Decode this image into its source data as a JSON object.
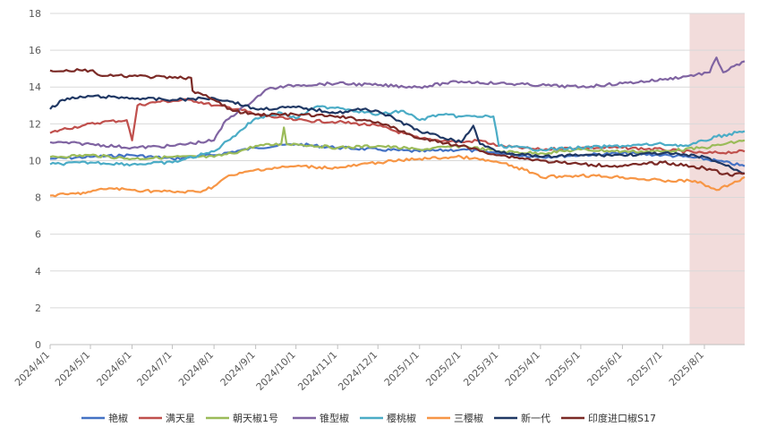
{
  "chart_data": {
    "type": "line",
    "title": "",
    "xlabel": "",
    "ylabel": "",
    "ylim": [
      0,
      18
    ],
    "yticks": [
      0,
      2,
      4,
      6,
      8,
      10,
      12,
      14,
      16,
      18
    ],
    "x_range": [
      "2024/4/1",
      "2025/8/31"
    ],
    "xticks": [
      "2024/4/1",
      "2024/5/1",
      "2024/6/1",
      "2024/7/1",
      "2024/8/1",
      "2024/9/1",
      "2024/10/1",
      "2024/11/1",
      "2024/12/1",
      "2025/1/1",
      "2025/2/1",
      "2025/3/1",
      "2025/4/1",
      "2025/5/1",
      "2025/6/1",
      "2025/7/1",
      "2025/8/1"
    ],
    "highlight_range": [
      "2025/7/21",
      "2025/8/31"
    ],
    "highlight_color": "#f2dcdb",
    "grid": "horizontal",
    "legend_position": "bottom",
    "series": [
      {
        "name": "艳椒",
        "color": "#4472c4",
        "points": [
          [
            "2024/4/1",
            10.1
          ],
          [
            "2024/5/1",
            10.2
          ],
          [
            "2024/6/1",
            10.3
          ],
          [
            "2024/7/1",
            10.1
          ],
          [
            "2024/8/1",
            10.3
          ],
          [
            "2024/9/1",
            10.7
          ],
          [
            "2024/10/1",
            10.9
          ],
          [
            "2024/11/1",
            10.7
          ],
          [
            "2024/12/1",
            10.6
          ],
          [
            "2025/1/1",
            10.5
          ],
          [
            "2025/2/1",
            10.6
          ],
          [
            "2025/3/1",
            10.4
          ],
          [
            "2025/4/1",
            10.2
          ],
          [
            "2025/5/1",
            10.3
          ],
          [
            "2025/6/1",
            10.4
          ],
          [
            "2025/7/1",
            10.3
          ],
          [
            "2025/7/20",
            10.2
          ],
          [
            "2025/8/10",
            10.0
          ],
          [
            "2025/8/31",
            9.7
          ]
        ]
      },
      {
        "name": "满天星",
        "color": "#c0504d",
        "points": [
          [
            "2024/4/1",
            11.5
          ],
          [
            "2024/4/10",
            11.7
          ],
          [
            "2024/4/25",
            11.9
          ],
          [
            "2024/5/10",
            12.1
          ],
          [
            "2024/5/28",
            12.2
          ],
          [
            "2024/6/1",
            11.1
          ],
          [
            "2024/6/5",
            13.0
          ],
          [
            "2024/6/20",
            13.2
          ],
          [
            "2024/7/15",
            13.3
          ],
          [
            "2024/8/1",
            13.0
          ],
          [
            "2024/8/20",
            12.8
          ],
          [
            "2024/9/1",
            12.5
          ],
          [
            "2024/10/1",
            12.2
          ],
          [
            "2024/11/1",
            12.1
          ],
          [
            "2024/12/1",
            11.9
          ],
          [
            "2025/1/1",
            11.2
          ],
          [
            "2025/2/1",
            11.0
          ],
          [
            "2025/2/15",
            11.1
          ],
          [
            "2025/3/1",
            10.8
          ],
          [
            "2025/4/1",
            10.6
          ],
          [
            "2025/5/1",
            10.7
          ],
          [
            "2025/6/1",
            10.7
          ],
          [
            "2025/7/1",
            10.6
          ],
          [
            "2025/8/1",
            10.4
          ],
          [
            "2025/8/31",
            10.5
          ]
        ]
      },
      {
        "name": "朝天椒1号",
        "color": "#9bbb59",
        "points": [
          [
            "2024/4/1",
            10.2
          ],
          [
            "2024/5/1",
            10.3
          ],
          [
            "2024/6/1",
            10.1
          ],
          [
            "2024/7/1",
            10.2
          ],
          [
            "2024/8/1",
            10.2
          ],
          [
            "2024/8/20",
            10.5
          ],
          [
            "2024/9/1",
            10.8
          ],
          [
            "2024/9/20",
            10.9
          ],
          [
            "2024/9/22",
            11.8
          ],
          [
            "2024/9/24",
            10.9
          ],
          [
            "2024/10/1",
            10.9
          ],
          [
            "2024/11/1",
            10.7
          ],
          [
            "2024/12/1",
            10.8
          ],
          [
            "2025/1/1",
            10.6
          ],
          [
            "2025/2/1",
            10.8
          ],
          [
            "2025/3/1",
            10.5
          ],
          [
            "2025/4/1",
            10.4
          ],
          [
            "2025/5/1",
            10.6
          ],
          [
            "2025/6/1",
            10.5
          ],
          [
            "2025/7/1",
            10.5
          ],
          [
            "2025/8/1",
            10.7
          ],
          [
            "2025/8/31",
            11.1
          ]
        ]
      },
      {
        "name": "锥型椒",
        "color": "#8064a2",
        "points": [
          [
            "2024/4/1",
            11.0
          ],
          [
            "2024/5/1",
            10.9
          ],
          [
            "2024/6/1",
            10.7
          ],
          [
            "2024/7/1",
            10.8
          ],
          [
            "2024/8/1",
            11.1
          ],
          [
            "2024/8/10",
            12.2
          ],
          [
            "2024/8/25",
            13.0
          ],
          [
            "2024/9/1",
            13.4
          ],
          [
            "2024/9/10",
            13.9
          ],
          [
            "2024/10/1",
            14.1
          ],
          [
            "2024/11/1",
            14.2
          ],
          [
            "2024/12/1",
            14.1
          ],
          [
            "2025/1/1",
            14.0
          ],
          [
            "2025/1/20",
            14.2
          ],
          [
            "2025/2/1",
            14.3
          ],
          [
            "2025/3/1",
            14.2
          ],
          [
            "2025/4/1",
            14.1
          ],
          [
            "2025/5/1",
            14.0
          ],
          [
            "2025/6/1",
            14.2
          ],
          [
            "2025/7/1",
            14.4
          ],
          [
            "2025/7/20",
            14.6
          ],
          [
            "2025/8/5",
            14.8
          ],
          [
            "2025/8/10",
            15.6
          ],
          [
            "2025/8/15",
            14.8
          ],
          [
            "2025/8/31",
            15.4
          ]
        ]
      },
      {
        "name": "樱桃椒",
        "color": "#4bacc6",
        "points": [
          [
            "2024/4/1",
            9.8
          ],
          [
            "2024/5/1",
            9.9
          ],
          [
            "2024/6/1",
            9.8
          ],
          [
            "2024/7/1",
            9.9
          ],
          [
            "2024/8/1",
            10.5
          ],
          [
            "2024/8/15",
            11.3
          ],
          [
            "2024/9/1",
            12.3
          ],
          [
            "2024/9/20",
            12.6
          ],
          [
            "2024/10/1",
            12.3
          ],
          [
            "2024/10/15",
            12.9
          ],
          [
            "2024/11/1",
            12.9
          ],
          [
            "2024/12/1",
            12.5
          ],
          [
            "2024/12/20",
            12.7
          ],
          [
            "2025/1/1",
            12.2
          ],
          [
            "2025/1/15",
            12.5
          ],
          [
            "2025/2/1",
            12.4
          ],
          [
            "2025/2/25",
            12.4
          ],
          [
            "2025/3/1",
            10.8
          ],
          [
            "2025/4/1",
            10.6
          ],
          [
            "2025/5/1",
            10.7
          ],
          [
            "2025/6/1",
            10.8
          ],
          [
            "2025/7/1",
            10.9
          ],
          [
            "2025/7/20",
            10.8
          ],
          [
            "2025/8/10",
            11.3
          ],
          [
            "2025/8/31",
            11.6
          ]
        ]
      },
      {
        "name": "三樱椒",
        "color": "#f79646",
        "points": [
          [
            "2024/4/1",
            8.1
          ],
          [
            "2024/4/20",
            8.2
          ],
          [
            "2024/5/1",
            8.3
          ],
          [
            "2024/5/15",
            8.5
          ],
          [
            "2024/6/1",
            8.4
          ],
          [
            "2024/7/1",
            8.3
          ],
          [
            "2024/7/20",
            8.3
          ],
          [
            "2024/8/1",
            8.6
          ],
          [
            "2024/8/10",
            9.1
          ],
          [
            "2024/9/1",
            9.5
          ],
          [
            "2024/10/1",
            9.7
          ],
          [
            "2024/11/1",
            9.6
          ],
          [
            "2024/12/1",
            9.9
          ],
          [
            "2025/1/1",
            10.1
          ],
          [
            "2025/2/1",
            10.2
          ],
          [
            "2025/3/1",
            9.9
          ],
          [
            "2025/3/20",
            9.5
          ],
          [
            "2025/4/1",
            9.1
          ],
          [
            "2025/5/1",
            9.2
          ],
          [
            "2025/6/1",
            9.1
          ],
          [
            "2025/7/1",
            8.9
          ],
          [
            "2025/7/25",
            8.9
          ],
          [
            "2025/8/10",
            8.4
          ],
          [
            "2025/8/20",
            8.7
          ],
          [
            "2025/8/31",
            9.1
          ]
        ]
      },
      {
        "name": "新一代",
        "color": "#203864",
        "points": [
          [
            "2024/4/1",
            12.8
          ],
          [
            "2024/4/10",
            13.3
          ],
          [
            "2024/5/1",
            13.5
          ],
          [
            "2024/6/1",
            13.4
          ],
          [
            "2024/7/1",
            13.3
          ],
          [
            "2024/8/1",
            13.4
          ],
          [
            "2024/8/15",
            13.2
          ],
          [
            "2024/9/1",
            12.8
          ],
          [
            "2024/10/1",
            12.9
          ],
          [
            "2024/11/1",
            12.6
          ],
          [
            "2024/11/20",
            12.8
          ],
          [
            "2024/12/1",
            12.7
          ],
          [
            "2025/1/1",
            11.6
          ],
          [
            "2025/2/1",
            11.0
          ],
          [
            "2025/2/10",
            11.9
          ],
          [
            "2025/2/15",
            10.9
          ],
          [
            "2025/3/1",
            10.5
          ],
          [
            "2025/4/1",
            10.2
          ],
          [
            "2025/5/1",
            10.3
          ],
          [
            "2025/6/1",
            10.3
          ],
          [
            "2025/7/1",
            10.4
          ],
          [
            "2025/8/1",
            10.2
          ],
          [
            "2025/8/15",
            9.8
          ],
          [
            "2025/8/31",
            9.3
          ]
        ]
      },
      {
        "name": "印度进口椒S17",
        "color": "#7b2a26",
        "points": [
          [
            "2024/4/1",
            14.9
          ],
          [
            "2024/5/1",
            14.9
          ],
          [
            "2024/5/10",
            14.6
          ],
          [
            "2024/6/1",
            14.6
          ],
          [
            "2024/7/1",
            14.5
          ],
          [
            "2024/7/15",
            14.5
          ],
          [
            "2024/7/16",
            13.8
          ],
          [
            "2024/8/1",
            13.3
          ],
          [
            "2024/8/15",
            12.7
          ],
          [
            "2024/9/1",
            12.5
          ],
          [
            "2024/10/1",
            12.5
          ],
          [
            "2024/11/1",
            12.4
          ],
          [
            "2024/12/1",
            12.1
          ],
          [
            "2025/1/1",
            11.2
          ],
          [
            "2025/2/1",
            10.8
          ],
          [
            "2025/3/1",
            10.3
          ],
          [
            "2025/4/1",
            10.0
          ],
          [
            "2025/5/1",
            9.8
          ],
          [
            "2025/6/1",
            9.7
          ],
          [
            "2025/7/1",
            9.9
          ],
          [
            "2025/8/1",
            9.6
          ],
          [
            "2025/8/20",
            9.2
          ],
          [
            "2025/8/31",
            9.3
          ]
        ]
      }
    ]
  }
}
